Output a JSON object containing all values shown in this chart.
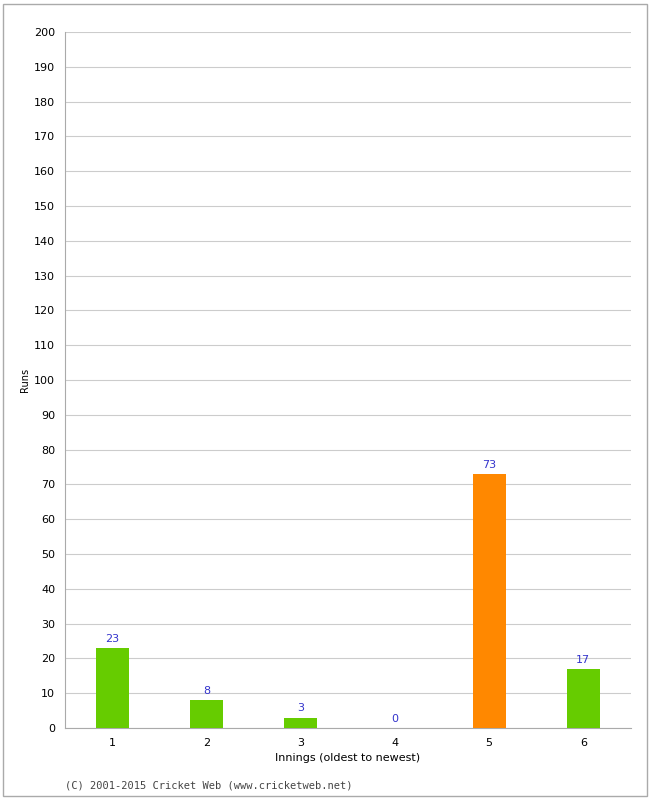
{
  "xlabel": "Innings (oldest to newest)",
  "ylabel": "Runs",
  "categories": [
    "1",
    "2",
    "3",
    "4",
    "5",
    "6"
  ],
  "values": [
    23,
    8,
    3,
    0,
    73,
    17
  ],
  "bar_colors": [
    "#66cc00",
    "#66cc00",
    "#66cc00",
    "#66cc00",
    "#ff8800",
    "#66cc00"
  ],
  "label_color": "#3333cc",
  "ylim": [
    0,
    200
  ],
  "yticks": [
    0,
    10,
    20,
    30,
    40,
    50,
    60,
    70,
    80,
    90,
    100,
    110,
    120,
    130,
    140,
    150,
    160,
    170,
    180,
    190,
    200
  ],
  "background_color": "#ffffff",
  "grid_color": "#cccccc",
  "footer": "(C) 2001-2015 Cricket Web (www.cricketweb.net)",
  "label_fontsize": 8,
  "axis_fontsize": 8,
  "ylabel_fontsize": 7,
  "footer_fontsize": 7.5,
  "bar_width": 0.35,
  "border_color": "#aaaaaa"
}
